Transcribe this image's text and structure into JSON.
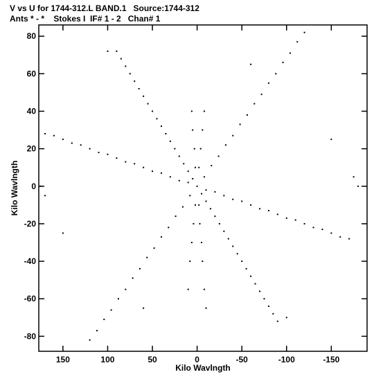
{
  "header": {
    "line1": "V vs U for 1744-312.L BAND.1   Source:1744-312",
    "line2": "Ants * - *    Stokes I  IF# 1 - 2   Chan# 1"
  },
  "chart_data": {
    "type": "scatter",
    "title": "V vs U for 1744-312.L BAND.1   Source:1744-312",
    "subtitle": "Ants * - *    Stokes I  IF# 1 - 2   Chan# 1",
    "xlabel": "Kilo Wavlngth",
    "ylabel": "Kilo Wavlngth",
    "xlim": [
      177,
      -190
    ],
    "ylim": [
      -88,
      86
    ],
    "x_reversed": true,
    "grid": false,
    "x_ticks": [
      150,
      100,
      50,
      0,
      -50,
      -100,
      -150
    ],
    "x_tick_labels": [
      "150",
      "100",
      "50",
      "0",
      "-50",
      "-100",
      "-150"
    ],
    "y_ticks": [
      80,
      60,
      40,
      20,
      0,
      -20,
      -40,
      -60,
      -80
    ],
    "y_tick_labels": [
      "80",
      "60",
      "40",
      "20",
      "0",
      "-20",
      "-40",
      "-60",
      "-80"
    ],
    "marker_color": "#000000",
    "series": [
      {
        "description_of_pattern": "six-armed uv-coverage star, arms toward ~(+90,+72)/(-90,-72), (+120,-82)/(-125,+82), (+170,+28)/(-170,-28)",
        "points": [
          [
            0,
            0
          ],
          [
            5,
            4
          ],
          [
            10,
            8
          ],
          [
            15,
            12
          ],
          [
            20,
            16
          ],
          [
            25,
            20
          ],
          [
            30,
            24
          ],
          [
            35,
            28
          ],
          [
            40,
            32
          ],
          [
            45,
            36
          ],
          [
            50,
            40
          ],
          [
            55,
            44
          ],
          [
            60,
            48
          ],
          [
            65,
            52
          ],
          [
            70,
            56
          ],
          [
            75,
            60
          ],
          [
            80,
            64
          ],
          [
            85,
            68
          ],
          [
            90,
            72
          ],
          [
            -5,
            -4
          ],
          [
            -10,
            -8
          ],
          [
            -15,
            -12
          ],
          [
            -20,
            -16
          ],
          [
            -25,
            -20
          ],
          [
            -30,
            -24
          ],
          [
            -35,
            -28
          ],
          [
            -40,
            -32
          ],
          [
            -45,
            -36
          ],
          [
            -50,
            -40
          ],
          [
            -55,
            -44
          ],
          [
            -60,
            -48
          ],
          [
            -65,
            -52
          ],
          [
            -70,
            -56
          ],
          [
            -75,
            -60
          ],
          [
            -80,
            -64
          ],
          [
            -85,
            -68
          ],
          [
            -90,
            -72
          ],
          [
            8,
            -5
          ],
          [
            16,
            -11
          ],
          [
            24,
            -16
          ],
          [
            32,
            -22
          ],
          [
            40,
            -27
          ],
          [
            48,
            -33
          ],
          [
            56,
            -38
          ],
          [
            64,
            -44
          ],
          [
            72,
            -49
          ],
          [
            80,
            -55
          ],
          [
            88,
            -60
          ],
          [
            96,
            -66
          ],
          [
            104,
            -71
          ],
          [
            112,
            -77
          ],
          [
            120,
            -82
          ],
          [
            -8,
            5
          ],
          [
            -16,
            11
          ],
          [
            -24,
            16
          ],
          [
            -32,
            22
          ],
          [
            -40,
            27
          ],
          [
            -48,
            33
          ],
          [
            -56,
            38
          ],
          [
            -64,
            44
          ],
          [
            -72,
            49
          ],
          [
            -80,
            55
          ],
          [
            -88,
            60
          ],
          [
            -96,
            66
          ],
          [
            -104,
            71
          ],
          [
            -112,
            77
          ],
          [
            -120,
            82
          ],
          [
            10,
            2
          ],
          [
            20,
            3
          ],
          [
            30,
            5
          ],
          [
            40,
            7
          ],
          [
            50,
            8
          ],
          [
            60,
            10
          ],
          [
            70,
            12
          ],
          [
            80,
            13
          ],
          [
            90,
            15
          ],
          [
            100,
            17
          ],
          [
            110,
            18
          ],
          [
            120,
            20
          ],
          [
            130,
            22
          ],
          [
            140,
            23
          ],
          [
            150,
            25
          ],
          [
            160,
            27
          ],
          [
            170,
            28
          ],
          [
            -10,
            -2
          ],
          [
            -20,
            -3
          ],
          [
            -30,
            -5
          ],
          [
            -40,
            -7
          ],
          [
            -50,
            -8
          ],
          [
            -60,
            -10
          ],
          [
            -70,
            -12
          ],
          [
            -80,
            -13
          ],
          [
            -90,
            -15
          ],
          [
            -100,
            -17
          ],
          [
            -110,
            -18
          ],
          [
            -120,
            -20
          ],
          [
            -130,
            -22
          ],
          [
            -140,
            -23
          ],
          [
            -150,
            -25
          ],
          [
            -160,
            -27
          ],
          [
            -170,
            -28
          ],
          [
            2,
            10
          ],
          [
            3,
            20
          ],
          [
            5,
            30
          ],
          [
            6,
            40
          ],
          [
            -2,
            -10
          ],
          [
            -3,
            -20
          ],
          [
            -5,
            -30
          ],
          [
            -6,
            -40
          ],
          [
            -8,
            -55
          ],
          [
            -10,
            -65
          ],
          [
            -2,
            10
          ],
          [
            -4,
            20
          ],
          [
            -6,
            30
          ],
          [
            -8,
            40
          ],
          [
            2,
            -10
          ],
          [
            4,
            -20
          ],
          [
            6,
            -30
          ],
          [
            8,
            -40
          ],
          [
            10,
            -55
          ],
          [
            175,
            0
          ],
          [
            -180,
            0
          ],
          [
            -175,
            5
          ],
          [
            170,
            -5
          ],
          [
            -150,
            25
          ],
          [
            150,
            -25
          ],
          [
            -100,
            -70
          ],
          [
            100,
            72
          ],
          [
            -60,
            65
          ],
          [
            60,
            -65
          ]
        ]
      }
    ]
  }
}
